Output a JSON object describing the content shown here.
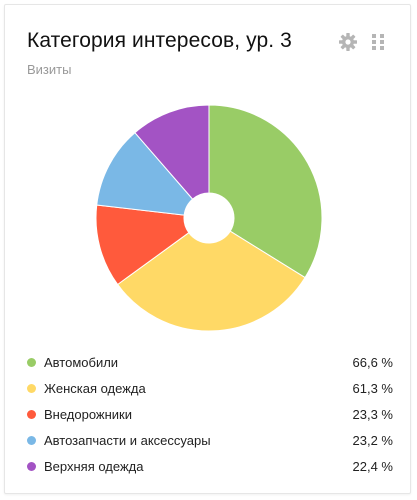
{
  "widget": {
    "title": "Категория интересов, ур. 3",
    "subtitle": "Визиты",
    "settings_icon": "gear-icon",
    "drag_icon": "drag-handle-icon"
  },
  "chart_data": {
    "type": "pie",
    "title": "",
    "categories": [
      "Автомобили",
      "Женская одежда",
      "Внедорожники",
      "Автозапчасти и аксессуары",
      "Верхняя одежда"
    ],
    "values": [
      66.6,
      61.3,
      23.3,
      23.2,
      22.4
    ],
    "value_labels": [
      "66,6 %",
      "61,3 %",
      "23,3 %",
      "23,2 %",
      "22,4 %"
    ],
    "colors": [
      "#99cc66",
      "#ffd966",
      "#ff5a3c",
      "#7ab8e6",
      "#a353c4"
    ],
    "legend_position": "bottom"
  }
}
